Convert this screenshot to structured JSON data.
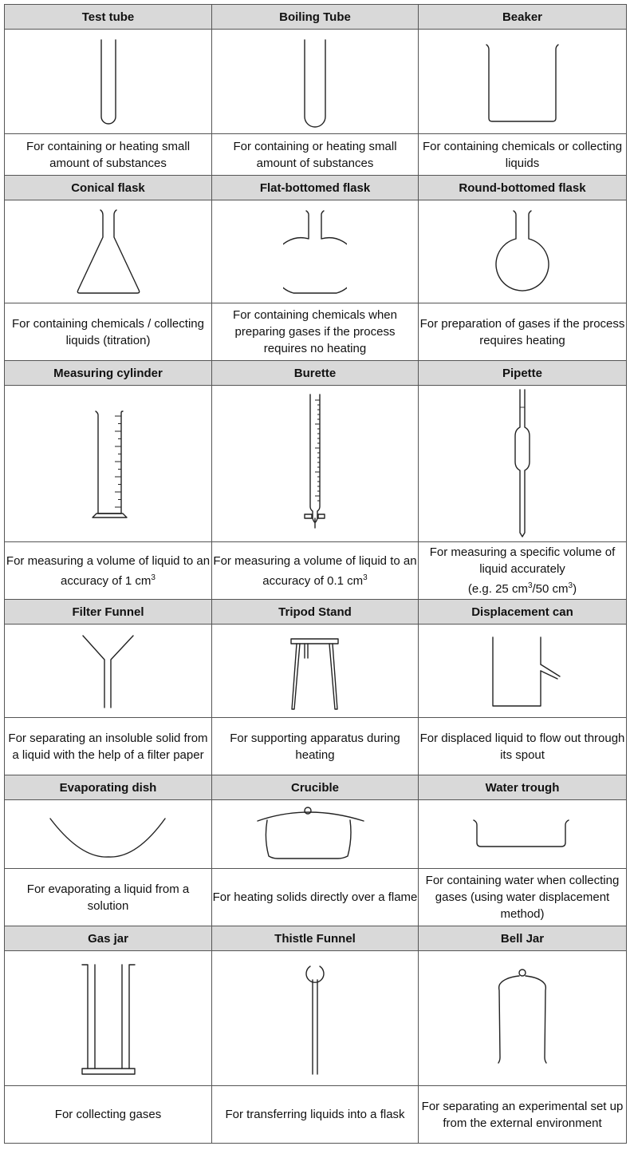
{
  "rows": [
    {
      "items": [
        {
          "name": "Test tube",
          "icon": "test-tube-icon",
          "desc": "For containing or heating small amount of substances"
        },
        {
          "name": "Boiling Tube",
          "icon": "boiling-tube-icon",
          "desc": "For containing or heating small amount of substances"
        },
        {
          "name": "Beaker",
          "icon": "beaker-icon",
          "desc": "For containing chemicals or collecting liquids"
        }
      ]
    },
    {
      "items": [
        {
          "name": "Conical flask",
          "icon": "conical-flask-icon",
          "desc": "For containing chemicals / collecting liquids (titration)"
        },
        {
          "name": "Flat-bottomed flask",
          "icon": "flat-bottomed-flask-icon",
          "desc": "For containing chemicals when preparing gases if the process requires no heating"
        },
        {
          "name": "Round-bottomed flask",
          "icon": "round-bottomed-flask-icon",
          "desc": "For preparation of gases if the process requires heating"
        }
      ]
    },
    {
      "items": [
        {
          "name": "Measuring cylinder",
          "icon": "measuring-cylinder-icon",
          "desc_a": "For measuring a volume of liquid to an accuracy of 1 cm",
          "desc_sup": "3"
        },
        {
          "name": "Burette",
          "icon": "burette-icon",
          "desc_a": "For measuring a volume of liquid to an accuracy of 0.1 cm",
          "desc_sup": "3"
        },
        {
          "name": "Pipette",
          "icon": "pipette-icon",
          "desc_a": "For measuring a specific volume of liquid accurately",
          "desc_b": "(e.g. 25 cm",
          "desc_sup1": "3",
          "desc_c": "/50 cm",
          "desc_sup2": "3",
          "desc_d": ")"
        }
      ]
    },
    {
      "items": [
        {
          "name": "Filter Funnel",
          "icon": "filter-funnel-icon",
          "desc": "For separating an insoluble solid from a liquid with the help of a filter paper"
        },
        {
          "name": "Tripod Stand",
          "icon": "tripod-stand-icon",
          "desc": "For supporting apparatus during heating"
        },
        {
          "name": "Displacement can",
          "icon": "displacement-can-icon",
          "desc": "For displaced liquid to flow out through its spout"
        }
      ]
    },
    {
      "items": [
        {
          "name": "Evaporating dish",
          "icon": "evaporating-dish-icon",
          "desc": "For evaporating a liquid from a solution"
        },
        {
          "name": "Crucible",
          "icon": "crucible-icon",
          "desc": "For heating solids directly over a flame"
        },
        {
          "name": "Water trough",
          "icon": "water-trough-icon",
          "desc": "For containing water when collecting gases (using water displacement method)"
        }
      ]
    },
    {
      "items": [
        {
          "name": "Gas jar",
          "icon": "gas-jar-icon",
          "desc": "For collecting gases"
        },
        {
          "name": "Thistle Funnel",
          "icon": "thistle-funnel-icon",
          "desc": "For transferring liquids into a flask"
        },
        {
          "name": "Bell Jar",
          "icon": "bell-jar-icon",
          "desc": "For separating an experimental set up from the external environment"
        }
      ]
    }
  ]
}
